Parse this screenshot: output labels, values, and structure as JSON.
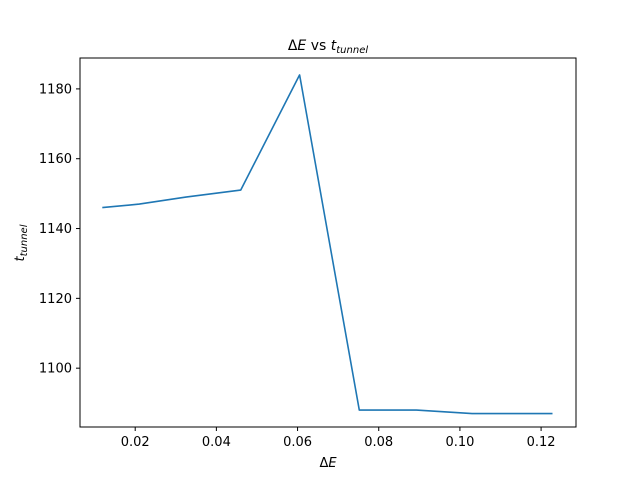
{
  "chart_data": {
    "type": "line",
    "title": {
      "prefix": "Δ",
      "var": "E",
      "middle": " vs ",
      "var2": "t",
      "sub": "tunnel"
    },
    "xlabel": {
      "prefix": "Δ",
      "var": "E"
    },
    "ylabel": {
      "var": "t",
      "sub": "tunnel"
    },
    "xlim": [
      0.0064,
      0.1286
    ],
    "ylim": [
      1083.15,
      1188.85
    ],
    "xticks": [
      0.02,
      0.04,
      0.06,
      0.08,
      0.1,
      0.12
    ],
    "xtick_labels": [
      "0.02",
      "0.04",
      "0.06",
      "0.08",
      "0.10",
      "0.12"
    ],
    "yticks": [
      1100,
      1120,
      1140,
      1160,
      1180
    ],
    "ytick_labels": [
      "1100",
      "1120",
      "1140",
      "1160",
      "1180"
    ],
    "grid": false,
    "series": [
      {
        "color": "#1f77b4",
        "x": [
          0.0119,
          0.021,
          0.0325,
          0.046,
          0.0605,
          0.0752,
          0.0893,
          0.103,
          0.1228
        ],
        "y": [
          1146,
          1147,
          1149,
          1151,
          1184,
          1088,
          1088,
          1087,
          1087
        ]
      }
    ]
  }
}
